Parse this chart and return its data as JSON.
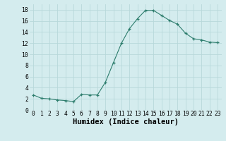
{
  "x": [
    0,
    1,
    2,
    3,
    4,
    5,
    6,
    7,
    8,
    9,
    10,
    11,
    12,
    13,
    14,
    15,
    16,
    17,
    18,
    19,
    20,
    21,
    22,
    23
  ],
  "y": [
    2.7,
    2.1,
    2.0,
    1.8,
    1.7,
    1.5,
    2.8,
    2.7,
    2.7,
    5.0,
    8.5,
    12.0,
    14.6,
    16.4,
    17.9,
    17.9,
    17.0,
    16.1,
    15.4,
    13.8,
    12.8,
    12.6,
    12.2,
    12.1
  ],
  "xlabel": "Humidex (Indice chaleur)",
  "ylim": [
    0,
    19
  ],
  "xlim": [
    -0.5,
    23.5
  ],
  "yticks": [
    0,
    2,
    4,
    6,
    8,
    10,
    12,
    14,
    16,
    18
  ],
  "xticks": [
    0,
    1,
    2,
    3,
    4,
    5,
    6,
    7,
    8,
    9,
    10,
    11,
    12,
    13,
    14,
    15,
    16,
    17,
    18,
    19,
    20,
    21,
    22,
    23
  ],
  "line_color": "#2d7d6d",
  "marker_color": "#2d7d6d",
  "bg_color": "#d4ecee",
  "grid_color": "#b8d8da",
  "tick_label_fontsize": 5.8,
  "xlabel_fontsize": 7.5
}
